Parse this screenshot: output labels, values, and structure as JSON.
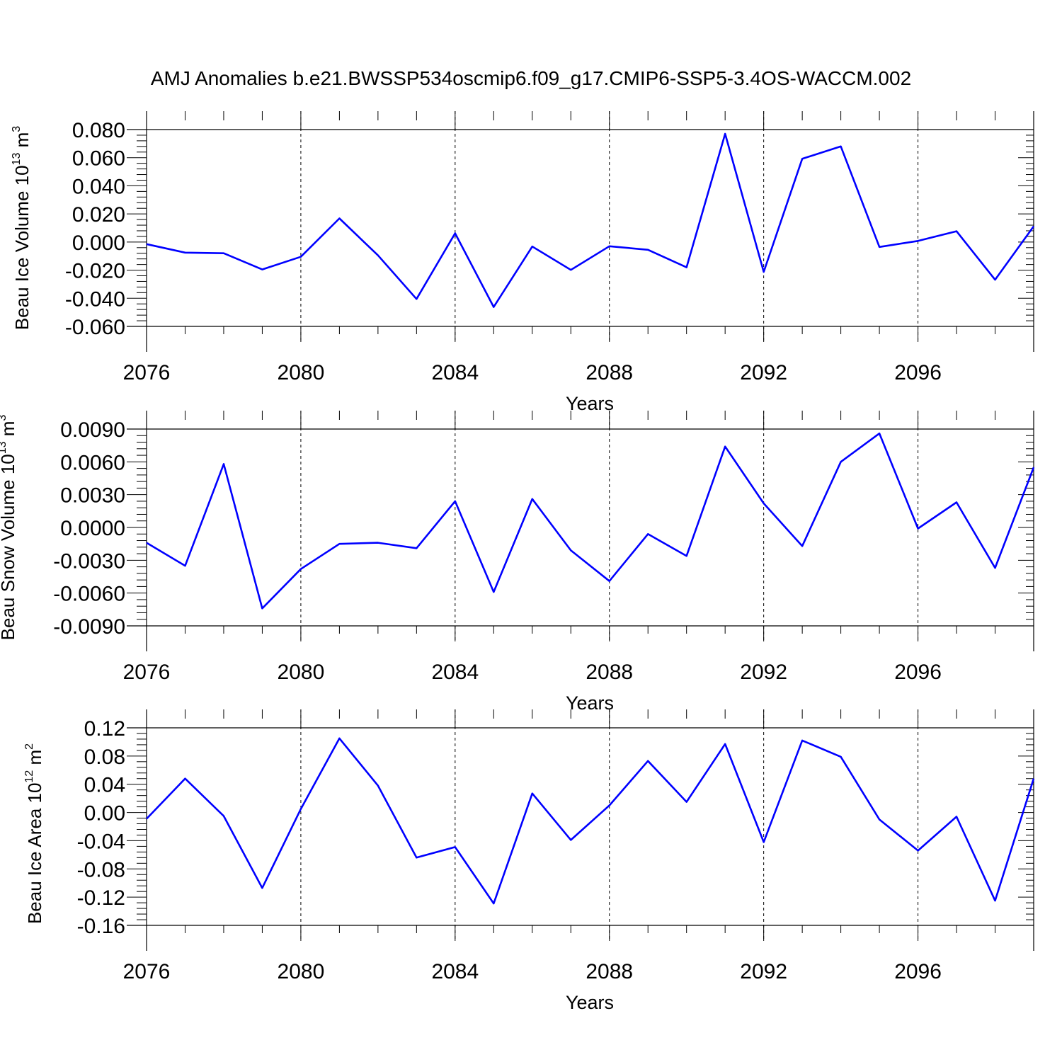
{
  "chart_data": [
    {
      "type": "line",
      "title": "AMJ Anomalies b.e21.BWSSP534oscmip6.f09_g17.CMIP6-SSP5-3.4OS-WACCM.002",
      "xlabel": "Years",
      "ylabel": "Beau Ice Volume 10",
      "ylabel_exp": "13",
      "ylabel_unit": " m",
      "ylabel_unit_exp": "3",
      "xlim": [
        2076,
        2099
      ],
      "ylim": [
        -0.06,
        0.08
      ],
      "yticks": [
        0.08,
        0.06,
        0.04,
        0.02,
        0.0,
        -0.02,
        -0.04,
        -0.06
      ],
      "ytick_labels": [
        "0.080",
        "0.060",
        "0.040",
        "0.020",
        "0.000",
        "-0.020",
        "-0.040",
        "-0.060"
      ],
      "xticks": [
        2076,
        2080,
        2084,
        2088,
        2092,
        2096
      ],
      "xtick_labels": [
        "2076",
        "2080",
        "2084",
        "2088",
        "2092",
        "2096"
      ],
      "grid": "vertical dashed",
      "color": "#0000ff",
      "x": [
        2076,
        2077,
        2078,
        2079,
        2080,
        2081,
        2082,
        2083,
        2084,
        2085,
        2086,
        2087,
        2088,
        2089,
        2090,
        2091,
        2092,
        2093,
        2094,
        2095,
        2096,
        2097,
        2098,
        2099
      ],
      "values": [
        -0.0015,
        -0.0075,
        -0.008,
        -0.0195,
        -0.0105,
        0.0168,
        -0.0095,
        -0.0405,
        0.0062,
        -0.0462,
        -0.0032,
        -0.0198,
        -0.003,
        -0.0055,
        -0.018,
        0.077,
        -0.0212,
        0.0592,
        0.068,
        -0.0035,
        0.0008,
        0.0077,
        -0.0268,
        0.0112
      ]
    },
    {
      "type": "line",
      "xlabel": "Years",
      "ylabel": "Beau Snow Volume 10",
      "ylabel_exp": "13",
      "ylabel_unit": " m",
      "ylabel_unit_exp": "3",
      "xlim": [
        2076,
        2099
      ],
      "ylim": [
        -0.009,
        0.009
      ],
      "yticks": [
        0.009,
        0.006,
        0.003,
        0.0,
        -0.003,
        -0.006,
        -0.009
      ],
      "ytick_labels": [
        "0.0090",
        "0.0060",
        "0.0030",
        "0.0000",
        "-0.0030",
        "-0.0060",
        "-0.0090"
      ],
      "xticks": [
        2076,
        2080,
        2084,
        2088,
        2092,
        2096
      ],
      "xtick_labels": [
        "2076",
        "2080",
        "2084",
        "2088",
        "2092",
        "2096"
      ],
      "grid": "vertical dashed",
      "color": "#0000ff",
      "x": [
        2076,
        2077,
        2078,
        2079,
        2080,
        2081,
        2082,
        2083,
        2084,
        2085,
        2086,
        2087,
        2088,
        2089,
        2090,
        2091,
        2092,
        2093,
        2094,
        2095,
        2096,
        2097,
        2098,
        2099
      ],
      "values": [
        -0.0014,
        -0.0035,
        0.0058,
        -0.0074,
        -0.0038,
        -0.0015,
        -0.0014,
        -0.0019,
        0.0024,
        -0.0059,
        0.0026,
        -0.0021,
        -0.0049,
        -0.0006,
        -0.0026,
        0.0074,
        0.0022,
        -0.0017,
        0.006,
        0.0086,
        -0.0001,
        0.0023,
        -0.0037,
        0.0055
      ]
    },
    {
      "type": "line",
      "xlabel": "Years",
      "ylabel": "Beau Ice Area 10",
      "ylabel_exp": "12",
      "ylabel_unit": " m",
      "ylabel_unit_exp": "2",
      "xlim": [
        2076,
        2099
      ],
      "ylim": [
        -0.16,
        0.12
      ],
      "yticks": [
        0.12,
        0.08,
        0.04,
        0.0,
        -0.04,
        -0.08,
        -0.12,
        -0.16
      ],
      "ytick_labels": [
        "0.12",
        "0.08",
        "0.04",
        "0.00",
        "-0.04",
        "-0.08",
        "-0.12",
        "-0.16"
      ],
      "xticks": [
        2076,
        2080,
        2084,
        2088,
        2092,
        2096
      ],
      "xtick_labels": [
        "2076",
        "2080",
        "2084",
        "2088",
        "2092",
        "2096"
      ],
      "grid": "vertical dashed",
      "color": "#0000ff",
      "x": [
        2076,
        2077,
        2078,
        2079,
        2080,
        2081,
        2082,
        2083,
        2084,
        2085,
        2086,
        2087,
        2088,
        2089,
        2090,
        2091,
        2092,
        2093,
        2094,
        2095,
        2096,
        2097,
        2098,
        2099
      ],
      "values": [
        -0.009,
        0.048,
        -0.005,
        -0.107,
        0.005,
        0.105,
        0.038,
        -0.064,
        -0.049,
        -0.129,
        0.027,
        -0.039,
        0.01,
        0.073,
        0.015,
        0.097,
        -0.042,
        0.102,
        0.079,
        -0.01,
        -0.054,
        -0.006,
        -0.125,
        0.048
      ]
    }
  ]
}
